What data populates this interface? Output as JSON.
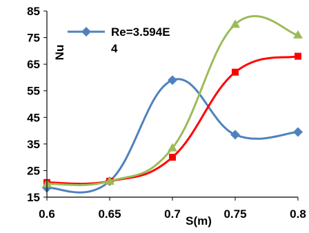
{
  "chart_data": {
    "type": "line",
    "title": "",
    "xlabel": "S(m)",
    "ylabel": "Nu",
    "xlim": [
      0.6,
      0.8
    ],
    "ylim": [
      15,
      85
    ],
    "x_ticks": [
      "0.6",
      "0.65",
      "0.7",
      "0.75",
      "0.8"
    ],
    "y_ticks": [
      "15",
      "25",
      "35",
      "45",
      "55",
      "65",
      "75",
      "85"
    ],
    "x": [
      0.6,
      0.65,
      0.7,
      0.75,
      0.8
    ],
    "grid": false,
    "legend_position": "top-left",
    "series": [
      {
        "name": "Re=3.594E 4",
        "legend_lines": [
          "Re=3.594E",
          "4"
        ],
        "color": "#4f81bd",
        "marker": "diamond",
        "values": [
          18.5,
          21,
          59,
          38.5,
          39.5
        ]
      },
      {
        "color": "#ff0000",
        "marker": "square",
        "values": [
          20.5,
          21,
          30,
          62,
          68
        ]
      },
      {
        "color": "#9bbb59",
        "marker": "triangle",
        "values": [
          20,
          21,
          33.5,
          80,
          76
        ]
      }
    ]
  }
}
